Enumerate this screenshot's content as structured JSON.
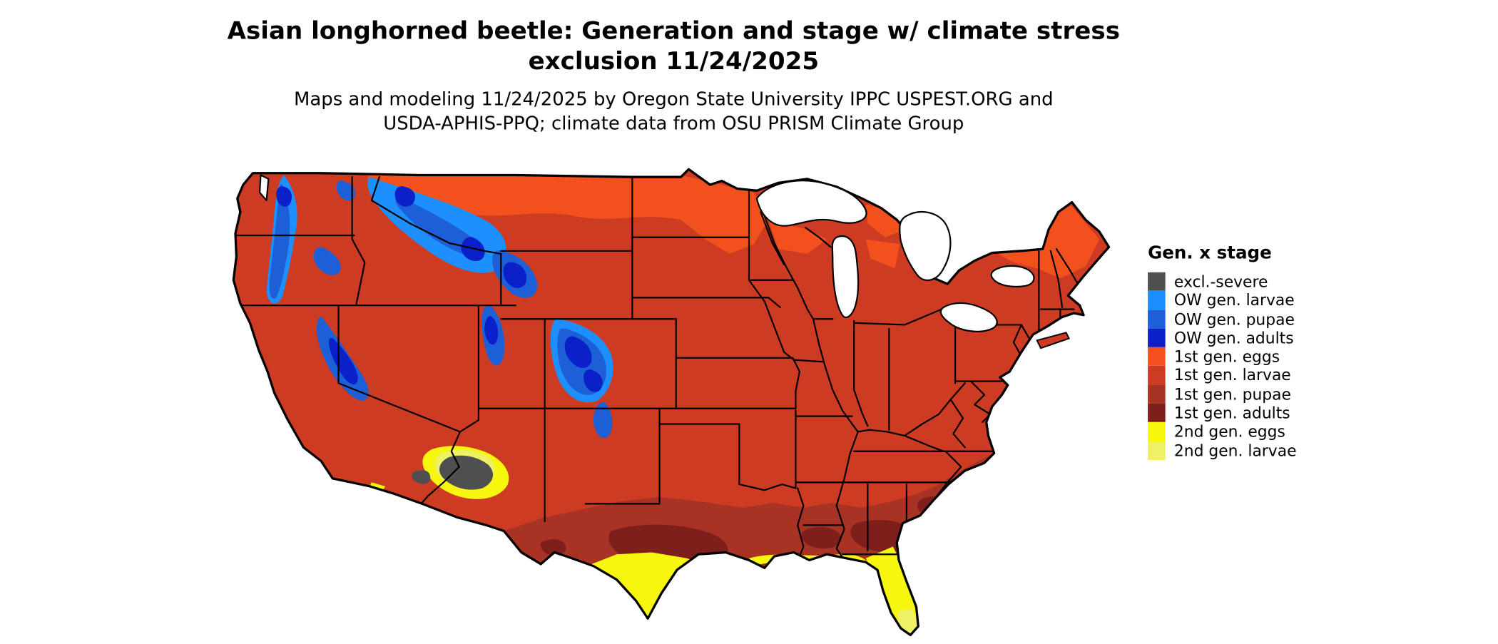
{
  "title": {
    "line1": "Asian longhorned beetle: Generation and stage w/ climate stress",
    "line2": "exclusion 11/24/2025"
  },
  "subtitle": {
    "line1": "Maps and modeling 11/24/2025 by Oregon State University IPPC USPEST.ORG and",
    "line2": "USDA-APHIS-PPQ; climate data from OSU PRISM Climate Group"
  },
  "legend": {
    "title": "Gen. x stage",
    "items": [
      {
        "label": "excl.-severe",
        "key": "excl_severe"
      },
      {
        "label": "OW gen. larvae",
        "key": "ow_larvae"
      },
      {
        "label": "OW gen. pupae",
        "key": "ow_pupae"
      },
      {
        "label": "OW gen. adults",
        "key": "ow_adults"
      },
      {
        "label": "1st gen. eggs",
        "key": "g1_eggs"
      },
      {
        "label": "1st gen. larvae",
        "key": "g1_larvae"
      },
      {
        "label": "1st gen. pupae",
        "key": "g1_pupae"
      },
      {
        "label": "1st gen. adults",
        "key": "g1_adults"
      },
      {
        "label": "2nd gen. eggs",
        "key": "g2_eggs"
      },
      {
        "label": "2nd gen. larvae",
        "key": "g2_larvae"
      }
    ]
  },
  "colors": {
    "excl_severe": "#4f4f4f",
    "ow_larvae": "#1e8fff",
    "ow_pupae": "#1d5fd6",
    "ow_adults": "#0b20c8",
    "g1_eggs": "#f2511e",
    "g1_larvae": "#cd3b23",
    "g1_pupae": "#a83325",
    "g1_adults": "#7f1f1c",
    "g2_eggs": "#f6f60e",
    "g2_larvae": "#eef065",
    "map_border": "#000000",
    "background": "#ffffff"
  },
  "map": {
    "region": "Continental United States",
    "date_shown": "11/24/2025"
  }
}
